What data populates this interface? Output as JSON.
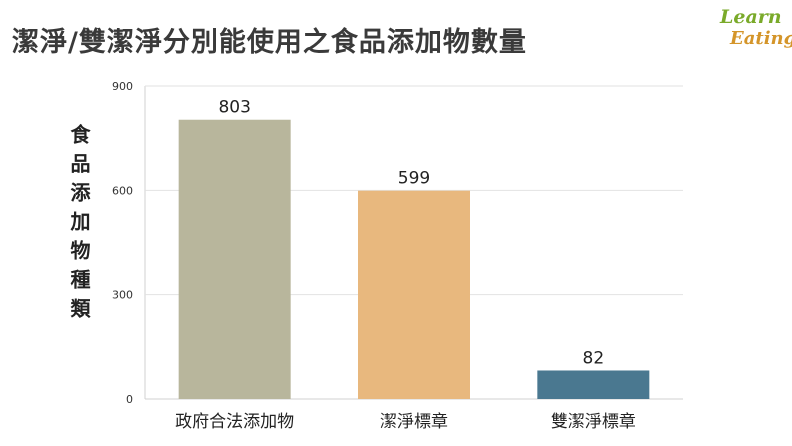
{
  "title": "潔淨/雙潔淨分別能使用之食品添加物數量",
  "logo": {
    "line1": "Learn",
    "line2": "Eating"
  },
  "colors": {
    "grid": "#e2e2e2",
    "axis": "#d0d0d0",
    "tick": "#333333",
    "label": "#222222"
  },
  "chart_data": {
    "type": "bar",
    "title": "潔淨/雙潔淨分別能使用之食品添加物數量",
    "ylabel": "食品添加物種類",
    "xlabel": "",
    "categories": [
      "政府合法添加物",
      "潔淨標章",
      "雙潔淨標章"
    ],
    "values": [
      803,
      599,
      82
    ],
    "bar_colors": [
      "#b8b69c",
      "#e8b87e",
      "#4a7890"
    ],
    "ylim": [
      0,
      900
    ],
    "yticks": [
      0,
      300,
      600,
      900
    ],
    "grid": true,
    "legend": "none"
  }
}
